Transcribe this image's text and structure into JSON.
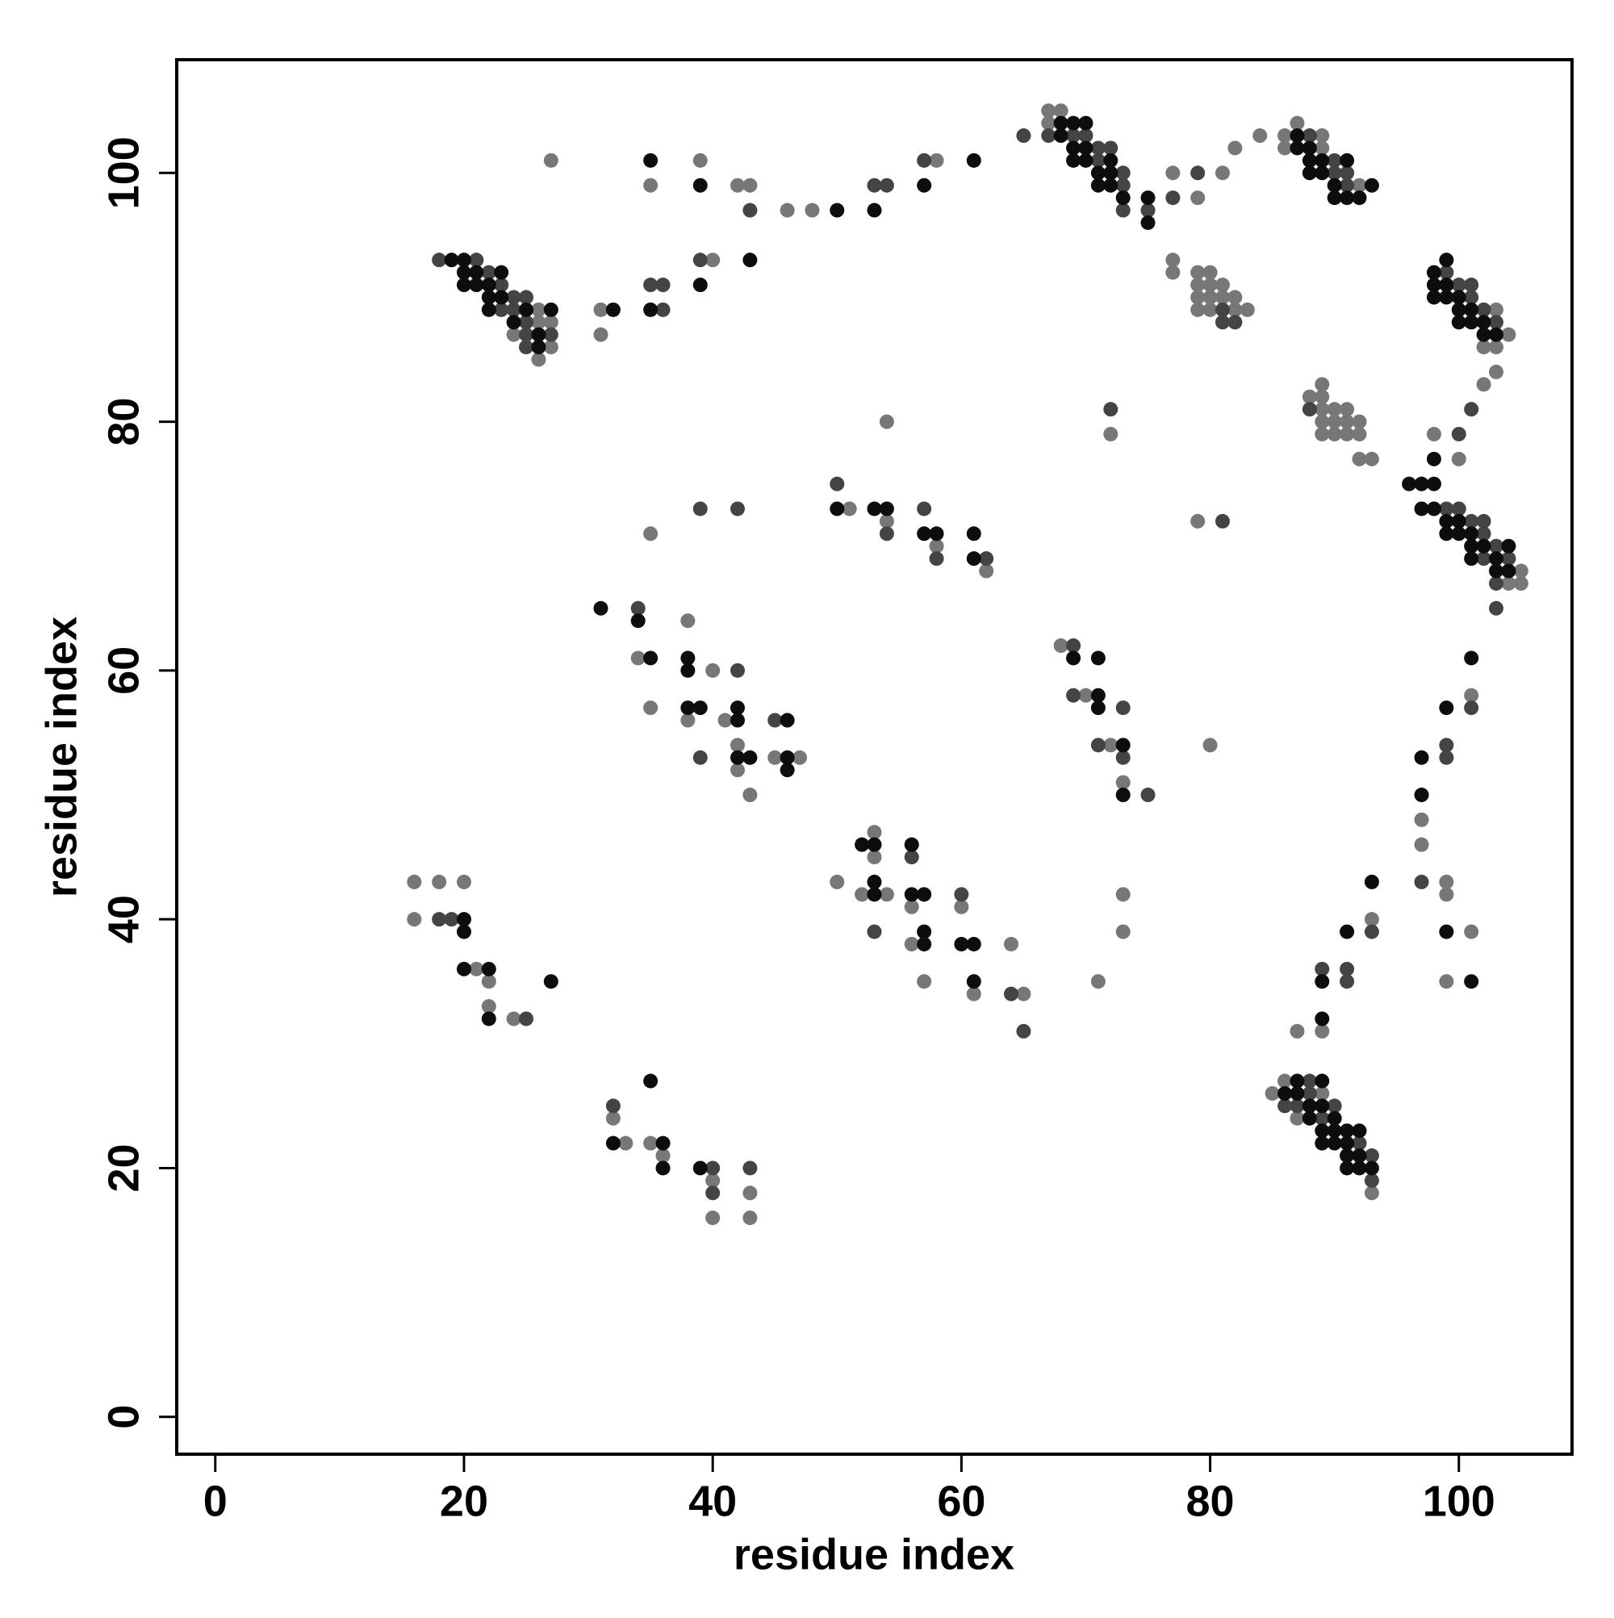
{
  "chart_data": {
    "type": "scatter",
    "x_label": "residue index",
    "y_label": "residue index",
    "xlim": [
      -3.1,
      109.1
    ],
    "ylim": [
      -3.0,
      109.1
    ],
    "xticks": [
      0,
      20,
      40,
      60,
      80,
      100
    ],
    "yticks": [
      0,
      20,
      40,
      60,
      80,
      100
    ],
    "series": [
      {
        "color": "#777777",
        "x": [
          26,
          26,
          27,
          24,
          27,
          26,
          27,
          39,
          35,
          42,
          43,
          46,
          48,
          58,
          31,
          31,
          40,
          67,
          68,
          67,
          77,
          79,
          81,
          82,
          84,
          86,
          86,
          87,
          89,
          89,
          92,
          77,
          77,
          79,
          80,
          79,
          80,
          81,
          79,
          80,
          81,
          82,
          79,
          80,
          82,
          83,
          103,
          104,
          102,
          103,
          103,
          102,
          89,
          88,
          89,
          89,
          90,
          91,
          89,
          90,
          91,
          92,
          89,
          90,
          91,
          92,
          92,
          93,
          98,
          100,
          105,
          104,
          105,
          54,
          51,
          54,
          58,
          62,
          35,
          72,
          79,
          38,
          34,
          40,
          35,
          38,
          41,
          42,
          42,
          45,
          47,
          43,
          68,
          70,
          72,
          73,
          80,
          101,
          97,
          97,
          99,
          99,
          101,
          99,
          50,
          53,
          53,
          52,
          54,
          56,
          56,
          57,
          60,
          61,
          64,
          65,
          71,
          73,
          73,
          16,
          18,
          20,
          16,
          21,
          22,
          22,
          24,
          32,
          33,
          35,
          36,
          40,
          40,
          43,
          43,
          93,
          87,
          89,
          85,
          86,
          89,
          87,
          93
        ],
        "y": [
          89,
          88,
          88,
          87,
          86,
          85,
          101,
          101,
          99,
          99,
          99,
          97,
          97,
          101,
          89,
          87,
          93,
          105,
          105,
          104,
          100,
          98,
          100,
          102,
          103,
          103,
          102,
          104,
          103,
          102,
          99,
          93,
          92,
          92,
          92,
          91,
          91,
          91,
          90,
          90,
          90,
          90,
          89,
          89,
          89,
          89,
          89,
          87,
          86,
          86,
          84,
          83,
          83,
          82,
          82,
          81,
          81,
          81,
          80,
          80,
          80,
          80,
          79,
          79,
          79,
          79,
          77,
          77,
          79,
          77,
          68,
          67,
          67,
          80,
          73,
          72,
          70,
          68,
          71,
          79,
          72,
          64,
          61,
          60,
          57,
          56,
          56,
          54,
          52,
          53,
          53,
          50,
          62,
          58,
          54,
          51,
          54,
          58,
          48,
          46,
          43,
          42,
          39,
          35,
          43,
          47,
          45,
          42,
          42,
          41,
          38,
          35,
          41,
          34,
          38,
          34,
          35,
          42,
          39,
          43,
          43,
          43,
          40,
          36,
          35,
          33,
          32,
          24,
          22,
          22,
          21,
          19,
          16,
          18,
          16,
          40,
          31,
          31,
          26,
          27,
          26,
          24,
          18
        ]
      },
      {
        "color": "#444444",
        "x": [
          18,
          21,
          22,
          23,
          24,
          25,
          23,
          24,
          25,
          25,
          27,
          25,
          43,
          53,
          54,
          57,
          35,
          36,
          36,
          39,
          65,
          67,
          69,
          70,
          71,
          72,
          71,
          73,
          73,
          73,
          75,
          77,
          79,
          88,
          90,
          90,
          91,
          91,
          81,
          81,
          82,
          99,
          100,
          101,
          101,
          102,
          103,
          88,
          101,
          100,
          99,
          100,
          101,
          102,
          102,
          103,
          102,
          104,
          103,
          103,
          50,
          54,
          57,
          58,
          62,
          39,
          42,
          72,
          81,
          34,
          42,
          45,
          39,
          69,
          69,
          73,
          71,
          73,
          75,
          101,
          99,
          99,
          97,
          53,
          56,
          60,
          64,
          65,
          18,
          19,
          25,
          32,
          40,
          40,
          43,
          93,
          89,
          91,
          91,
          88,
          88,
          86,
          87,
          90,
          89,
          92,
          93,
          93
        ],
        "y": [
          93,
          93,
          92,
          91,
          90,
          90,
          89,
          89,
          88,
          87,
          87,
          86,
          97,
          99,
          99,
          101,
          91,
          91,
          89,
          93,
          103,
          103,
          103,
          103,
          102,
          102,
          101,
          100,
          99,
          97,
          97,
          98,
          100,
          103,
          101,
          100,
          100,
          99,
          89,
          88,
          88,
          92,
          91,
          91,
          90,
          89,
          88,
          81,
          81,
          79,
          73,
          73,
          72,
          72,
          71,
          70,
          69,
          69,
          67,
          65,
          75,
          71,
          73,
          69,
          69,
          73,
          73,
          81,
          72,
          65,
          60,
          56,
          53,
          62,
          58,
          57,
          54,
          53,
          50,
          57,
          54,
          53,
          43,
          39,
          45,
          42,
          34,
          31,
          40,
          40,
          32,
          25,
          20,
          18,
          20,
          39,
          36,
          36,
          35,
          27,
          26,
          25,
          25,
          25,
          24,
          22,
          21,
          19
        ]
      },
      {
        "color": "#0d0d0d",
        "x": [
          19,
          20,
          20,
          21,
          23,
          20,
          21,
          22,
          22,
          23,
          22,
          25,
          27,
          24,
          26,
          26,
          35,
          39,
          50,
          53,
          57,
          61,
          32,
          35,
          39,
          43,
          68,
          69,
          70,
          68,
          69,
          70,
          69,
          70,
          72,
          71,
          72,
          71,
          72,
          73,
          75,
          75,
          87,
          87,
          88,
          88,
          89,
          91,
          88,
          89,
          90,
          93,
          90,
          91,
          92,
          99,
          98,
          98,
          99,
          98,
          99,
          100,
          100,
          101,
          100,
          101,
          102,
          102,
          103,
          98,
          96,
          97,
          98,
          97,
          98,
          99,
          100,
          99,
          100,
          101,
          101,
          102,
          104,
          101,
          103,
          103,
          104,
          50,
          53,
          54,
          57,
          58,
          61,
          61,
          31,
          34,
          35,
          38,
          38,
          38,
          39,
          42,
          42,
          46,
          42,
          43,
          46,
          46,
          69,
          71,
          71,
          71,
          73,
          73,
          101,
          99,
          97,
          97,
          99,
          101,
          52,
          53,
          53,
          53,
          56,
          56,
          57,
          57,
          57,
          60,
          61,
          61,
          20,
          20,
          20,
          22,
          22,
          27,
          35,
          32,
          36,
          36,
          39,
          93,
          91,
          89,
          89,
          87,
          89,
          86,
          87,
          88,
          89,
          88,
          90,
          89,
          90,
          91,
          92,
          89,
          90,
          91,
          91,
          92,
          91,
          92,
          93
        ],
        "y": [
          93,
          93,
          92,
          92,
          92,
          91,
          91,
          91,
          90,
          90,
          89,
          89,
          89,
          88,
          87,
          86,
          101,
          99,
          97,
          97,
          99,
          101,
          89,
          89,
          91,
          93,
          104,
          104,
          104,
          103,
          102,
          102,
          101,
          101,
          101,
          100,
          100,
          99,
          99,
          98,
          98,
          96,
          103,
          102,
          102,
          101,
          101,
          101,
          100,
          100,
          99,
          99,
          98,
          98,
          98,
          93,
          92,
          91,
          91,
          90,
          90,
          90,
          89,
          89,
          88,
          88,
          88,
          87,
          87,
          77,
          75,
          75,
          75,
          73,
          73,
          72,
          72,
          71,
          71,
          71,
          70,
          70,
          70,
          69,
          69,
          68,
          68,
          73,
          73,
          73,
          71,
          71,
          71,
          69,
          65,
          64,
          61,
          61,
          60,
          57,
          57,
          57,
          56,
          56,
          53,
          53,
          53,
          52,
          61,
          61,
          58,
          57,
          54,
          50,
          61,
          57,
          53,
          50,
          39,
          35,
          46,
          46,
          43,
          42,
          46,
          42,
          42,
          39,
          38,
          38,
          38,
          35,
          40,
          39,
          36,
          36,
          32,
          35,
          27,
          22,
          22,
          20,
          20,
          43,
          39,
          35,
          32,
          27,
          27,
          26,
          26,
          25,
          25,
          24,
          24,
          23,
          23,
          23,
          23,
          22,
          22,
          22,
          21,
          21,
          20,
          20,
          20
        ]
      }
    ]
  }
}
